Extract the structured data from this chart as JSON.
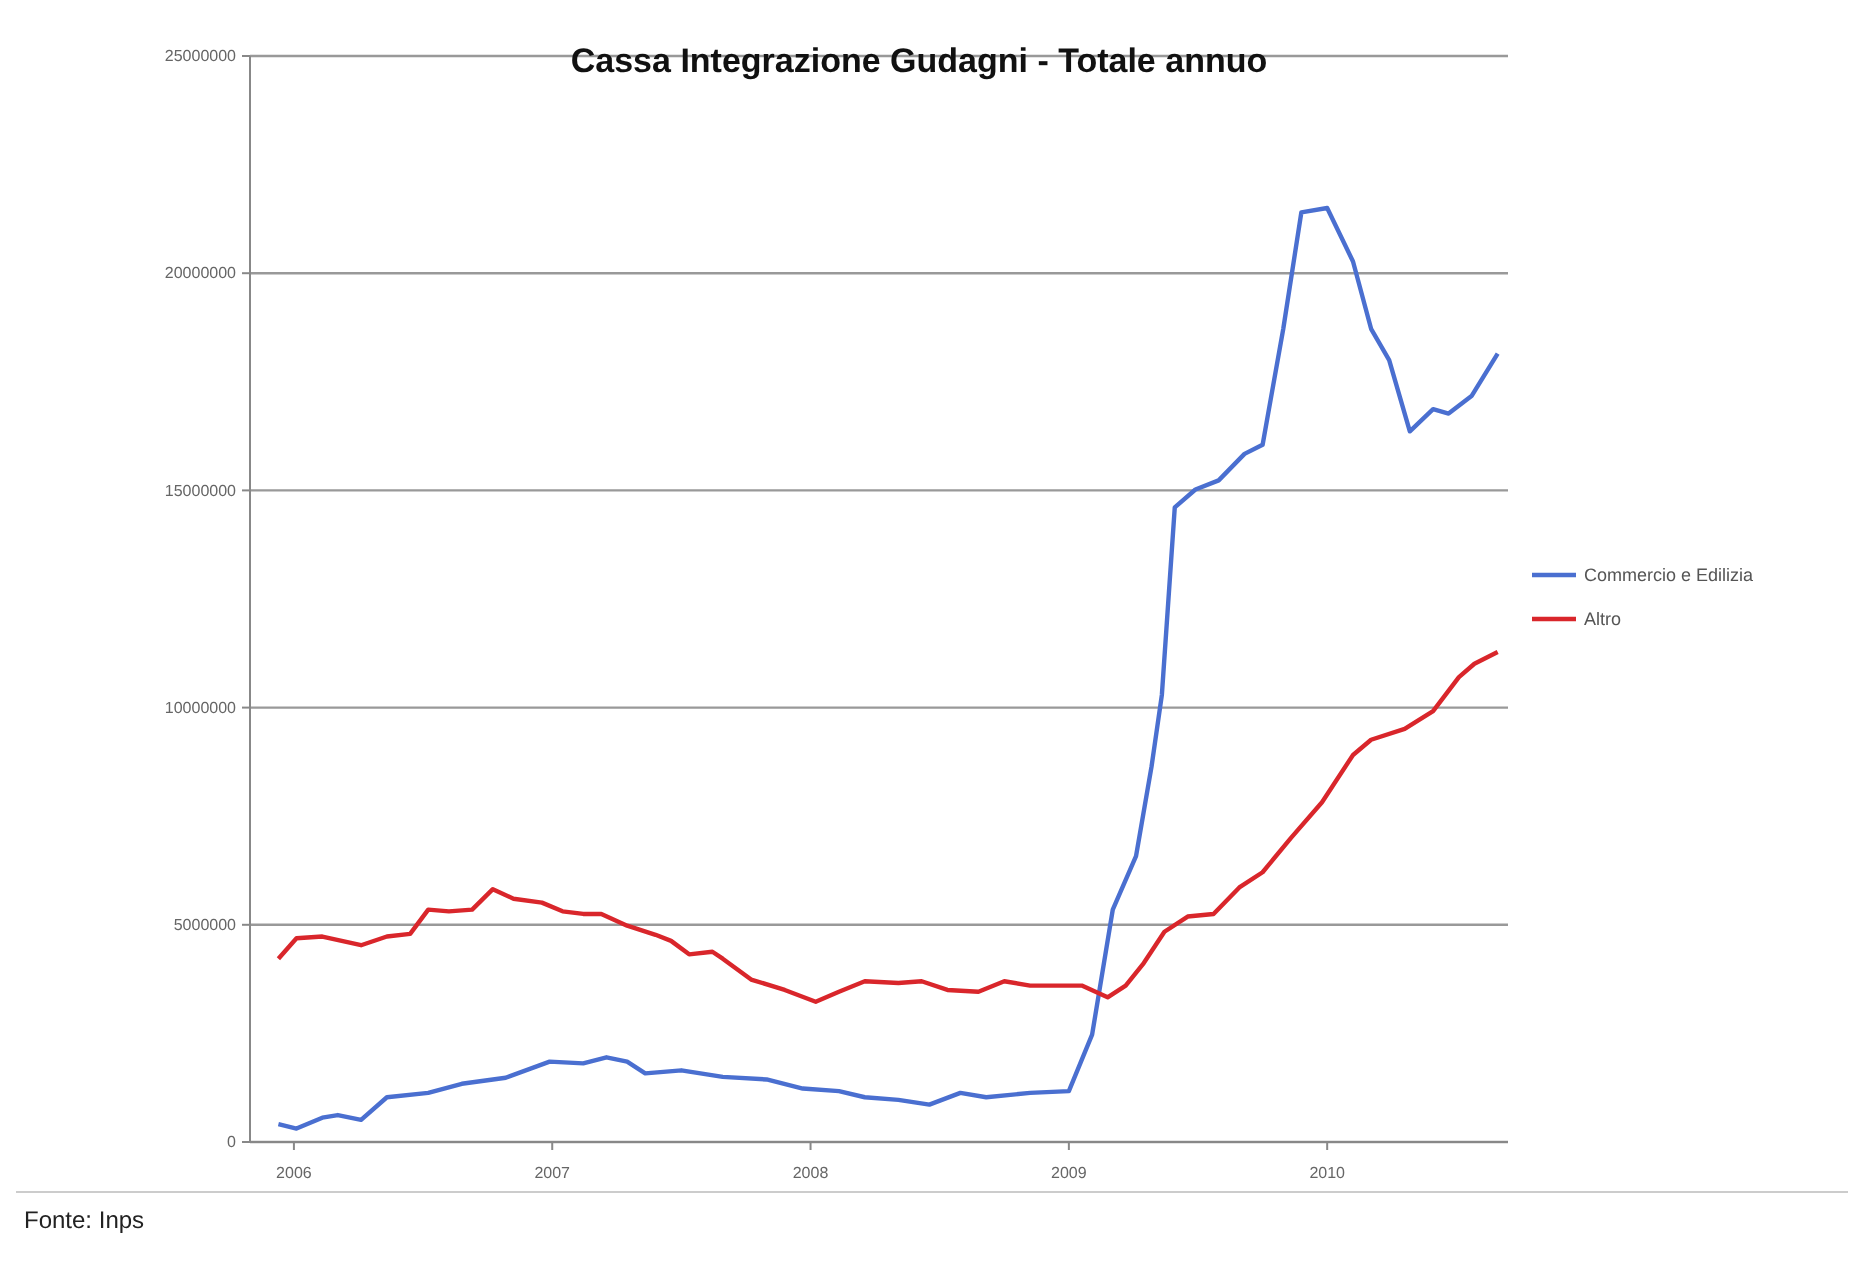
{
  "chart_data": {
    "type": "line",
    "title": "Cassa Integrazione Gudagni - Totale annuo",
    "annotations": [
      "Fonte: Inps"
    ],
    "xlim": [
      2005.83,
      2010.7
    ],
    "xticks": [
      {
        "value": 2006,
        "label": "2006"
      },
      {
        "value": 2007,
        "label": "2007"
      },
      {
        "value": 2008,
        "label": "2008"
      },
      {
        "value": 2009,
        "label": "2009"
      },
      {
        "value": 2010,
        "label": "2010"
      }
    ],
    "ylim": [
      0,
      25000000
    ],
    "yticks": [
      0,
      5000000,
      10000000,
      15000000,
      20000000,
      25000000
    ],
    "grid": "y",
    "legend": "right",
    "marker": "none",
    "line_style": "solid",
    "series": [
      {
        "name": "Commercio e Edilizia",
        "color": "#4a6fd0",
        "x": [
          2005.94,
          2006.01,
          2006.11,
          2006.17,
          2006.26,
          2006.36,
          2006.52,
          2006.65,
          2006.82,
          2006.99,
          2007.12,
          2007.21,
          2007.29,
          2007.36,
          2007.5,
          2007.66,
          2007.83,
          2007.97,
          2008.11,
          2008.21,
          2008.34,
          2008.46,
          2008.58,
          2008.68,
          2008.85,
          2009.0,
          2009.09,
          2009.17,
          2009.26,
          2009.32,
          2009.36,
          2009.41,
          2009.49,
          2009.58,
          2009.68,
          2009.75,
          2009.83,
          2009.9,
          2010.0,
          2010.1,
          2010.17,
          2010.24,
          2010.32,
          2010.41,
          2010.47,
          2010.56,
          2010.66
        ],
        "values": [
          410000,
          310000,
          560000,
          620000,
          510000,
          1030000,
          1130000,
          1340000,
          1480000,
          1850000,
          1810000,
          1950000,
          1850000,
          1580000,
          1650000,
          1500000,
          1440000,
          1230000,
          1170000,
          1030000,
          970000,
          860000,
          1130000,
          1030000,
          1130000,
          1170000,
          2470000,
          5350000,
          6580000,
          8640000,
          10290000,
          14610000,
          15020000,
          15230000,
          15840000,
          16050000,
          18720000,
          21400000,
          21500000,
          20270000,
          18720000,
          18000000,
          16360000,
          16870000,
          16770000,
          17180000,
          18150000
        ]
      },
      {
        "name": "Altro",
        "color": "#d9262b",
        "x": [
          2005.94,
          2006.01,
          2006.11,
          2006.26,
          2006.36,
          2006.45,
          2006.52,
          2006.6,
          2006.69,
          2006.77,
          2006.85,
          2006.96,
          2007.04,
          2007.12,
          2007.19,
          2007.29,
          2007.4,
          2007.46,
          2007.53,
          2007.62,
          2007.66,
          2007.77,
          2007.9,
          2008.02,
          2008.11,
          2008.21,
          2008.34,
          2008.43,
          2008.53,
          2008.65,
          2008.75,
          2008.85,
          2008.98,
          2009.05,
          2009.15,
          2009.22,
          2009.29,
          2009.37,
          2009.46,
          2009.56,
          2009.66,
          2009.75,
          2009.86,
          2009.98,
          2010.1,
          2010.17,
          2010.3,
          2010.41,
          2010.51,
          2010.57,
          2010.66
        ],
        "values": [
          4220000,
          4690000,
          4730000,
          4530000,
          4730000,
          4790000,
          5350000,
          5310000,
          5350000,
          5820000,
          5600000,
          5510000,
          5310000,
          5250000,
          5250000,
          4980000,
          4770000,
          4630000,
          4320000,
          4380000,
          4220000,
          3740000,
          3500000,
          3230000,
          3460000,
          3700000,
          3660000,
          3700000,
          3500000,
          3460000,
          3700000,
          3600000,
          3600000,
          3600000,
          3330000,
          3600000,
          4120000,
          4840000,
          5190000,
          5250000,
          5860000,
          6210000,
          7000000,
          7820000,
          8910000,
          9260000,
          9510000,
          9920000,
          10700000,
          11010000,
          11280000
        ]
      }
    ]
  }
}
